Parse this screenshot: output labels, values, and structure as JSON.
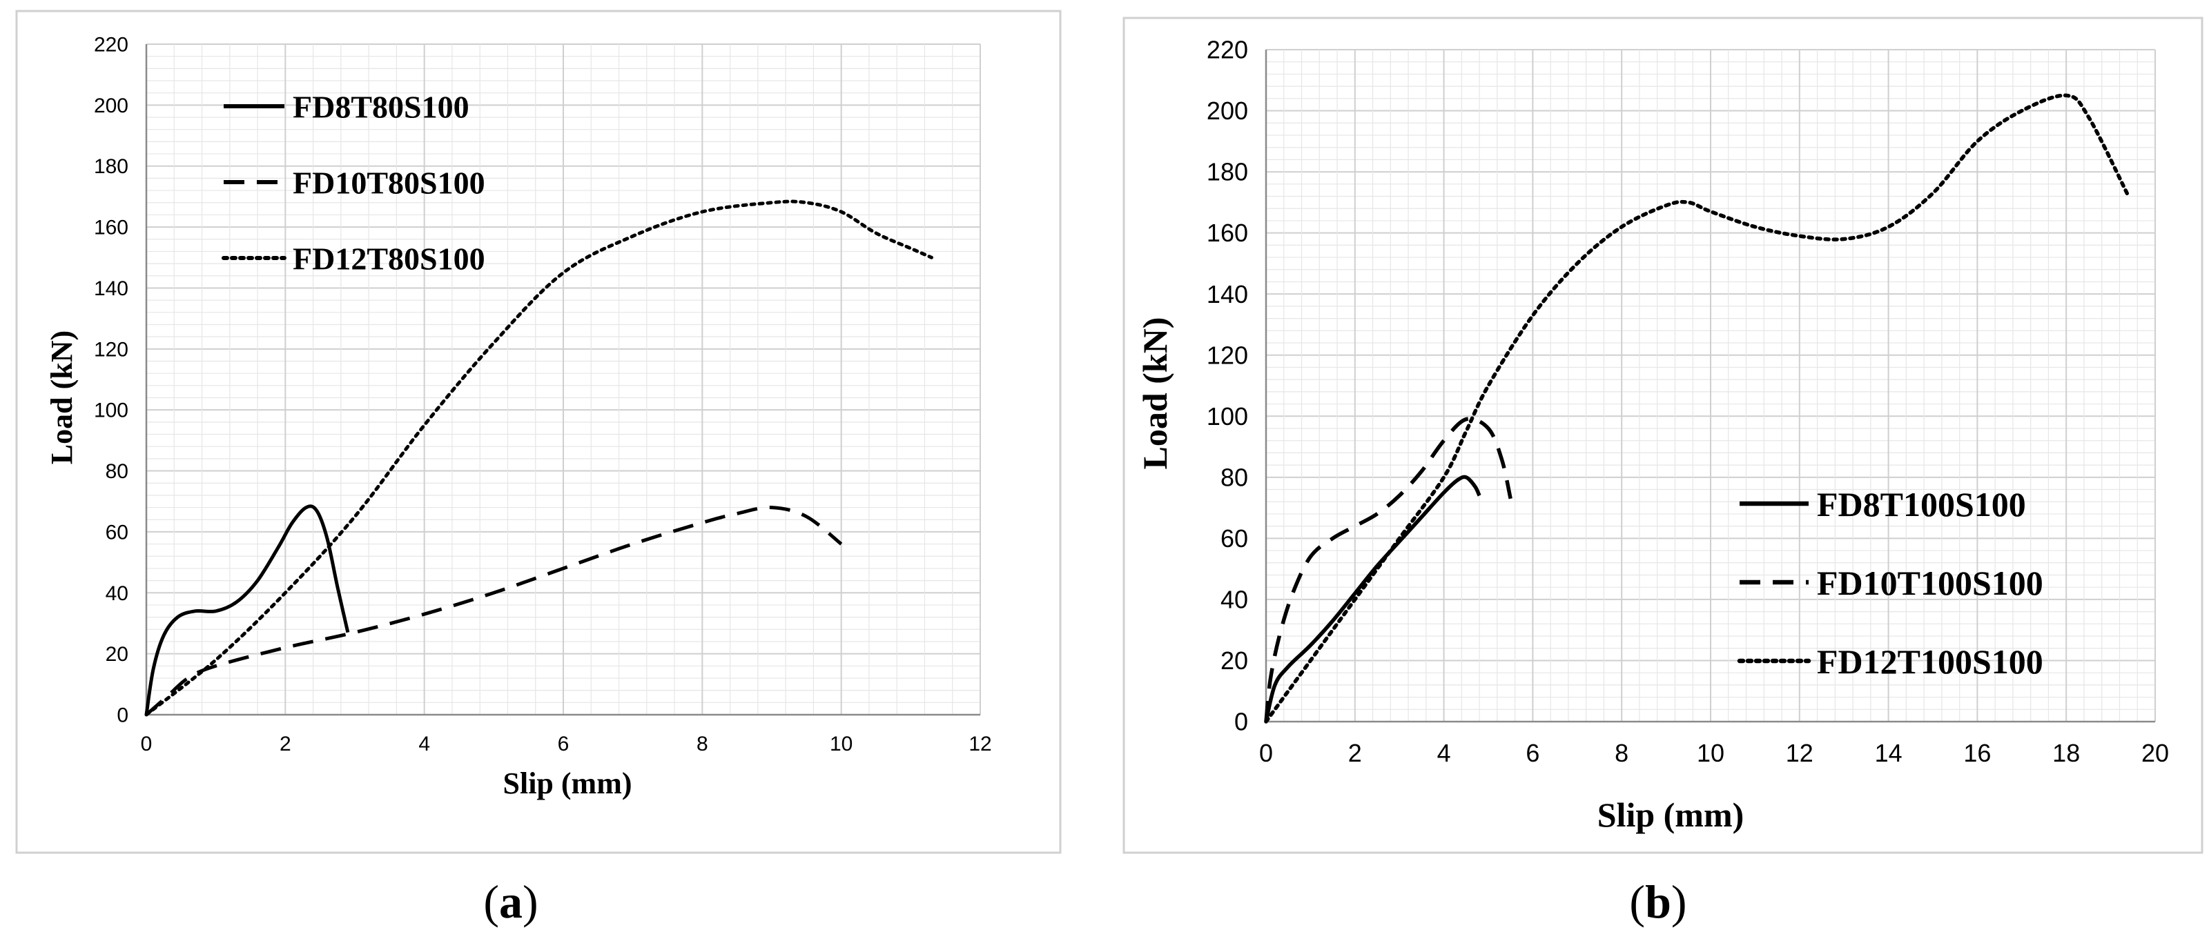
{
  "chart_data": [
    {
      "type": "line",
      "panel_label": "a",
      "xlabel": "Slip (mm)",
      "ylabel": "Load (kN)",
      "xlim": [
        0,
        12
      ],
      "ylim": [
        0,
        220
      ],
      "xticks": [
        "0",
        "2",
        "4",
        "6",
        "8",
        "10",
        "12"
      ],
      "yticks": [
        "0",
        "20",
        "40",
        "60",
        "80",
        "100",
        "120",
        "140",
        "160",
        "180",
        "200",
        "220"
      ],
      "grid": true,
      "legend_position": "top-left",
      "series": [
        {
          "name": "FD8T80S100",
          "style": "solid",
          "x": [
            0,
            0.1,
            0.25,
            0.45,
            0.7,
            1.0,
            1.3,
            1.6,
            1.9,
            2.1,
            2.3,
            2.45,
            2.6,
            2.75,
            2.9
          ],
          "y": [
            0,
            15,
            26,
            32,
            34,
            34,
            37,
            44,
            55,
            63,
            68,
            67,
            58,
            42,
            27
          ]
        },
        {
          "name": "FD10T80S100",
          "style": "dashed",
          "x": [
            0,
            0.3,
            0.6,
            1.0,
            2.0,
            3.0,
            4.0,
            5.0,
            6.0,
            7.0,
            8.0,
            8.5,
            9.0,
            9.5,
            10.0
          ],
          "y": [
            0,
            6,
            12,
            16,
            22,
            27,
            33,
            40,
            48,
            56,
            63,
            66,
            68,
            65,
            56
          ]
        },
        {
          "name": "FD12T80S100",
          "style": "dotted",
          "x": [
            0,
            1,
            2,
            3,
            4,
            5,
            6,
            7,
            8,
            9,
            9.5,
            10,
            10.5,
            11,
            11.3
          ],
          "y": [
            0,
            18,
            40,
            65,
            95,
            122,
            145,
            157,
            165,
            168,
            168,
            165,
            158,
            153,
            150
          ]
        }
      ]
    },
    {
      "type": "line",
      "panel_label": "b",
      "xlabel": "Slip (mm)",
      "ylabel": "Load (kN)",
      "xlim": [
        0,
        20
      ],
      "ylim": [
        0,
        220
      ],
      "xticks": [
        "0",
        "2",
        "4",
        "6",
        "8",
        "10",
        "12",
        "14",
        "16",
        "18",
        "20"
      ],
      "yticks": [
        "0",
        "20",
        "40",
        "60",
        "80",
        "100",
        "120",
        "140",
        "160",
        "180",
        "200",
        "220"
      ],
      "grid": true,
      "legend_position": "bottom-right",
      "series": [
        {
          "name": "FD8T100S100",
          "style": "solid",
          "x": [
            0,
            0.2,
            0.5,
            1.0,
            1.5,
            2.0,
            2.5,
            3.0,
            3.5,
            4.0,
            4.3,
            4.5,
            4.7,
            4.8
          ],
          "y": [
            0,
            12,
            18,
            25,
            33,
            42,
            51,
            59,
            67,
            75,
            79,
            80,
            77,
            74
          ]
        },
        {
          "name": "FD10T100S100",
          "style": "dashed",
          "x": [
            0,
            0.1,
            0.3,
            0.6,
            1.0,
            1.5,
            2.0,
            2.5,
            3.0,
            3.5,
            4.0,
            4.5,
            5.0,
            5.3,
            5.5
          ],
          "y": [
            0,
            14,
            28,
            42,
            54,
            60,
            64,
            68,
            74,
            82,
            92,
            99,
            96,
            86,
            73
          ]
        },
        {
          "name": "FD12T100S100",
          "style": "dotted",
          "x": [
            0,
            1,
            2,
            3,
            4,
            4.5,
            5,
            6,
            7,
            8,
            9,
            9.5,
            10,
            11,
            12,
            13,
            14,
            15,
            16,
            17,
            18,
            18.5,
            19.4
          ],
          "y": [
            0,
            20,
            40,
            60,
            80,
            95,
            110,
            133,
            150,
            162,
            169,
            170,
            167,
            162,
            159,
            158,
            162,
            173,
            190,
            200,
            205,
            198,
            172
          ]
        }
      ]
    }
  ]
}
